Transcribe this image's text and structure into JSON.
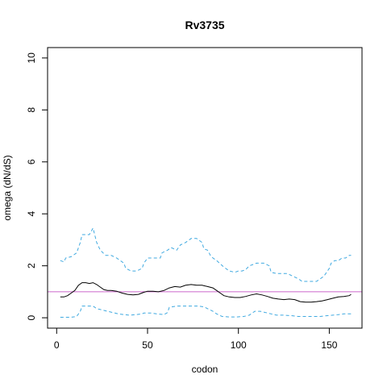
{
  "chart_data": {
    "type": "line",
    "title": "Rv3735",
    "xlabel": "codon",
    "ylabel": "omega (dN/dS)",
    "xlim": [
      -5,
      168
    ],
    "ylim": [
      -0.4,
      10.4
    ],
    "x_ticks": [
      0,
      50,
      100,
      150
    ],
    "y_ticks": [
      0,
      2,
      4,
      6,
      8,
      10
    ],
    "x_tick_labels": [
      "0",
      "50",
      "100",
      "150"
    ],
    "y_tick_labels": [
      "0",
      "2",
      "4",
      "6",
      "8",
      "10"
    ],
    "grid": false,
    "reference_line": {
      "y": 1,
      "color": "#cc66cc"
    },
    "series": [
      {
        "role": "upper",
        "style": "dashed",
        "color": "#3fa9e0",
        "x": [
          2,
          4,
          5,
          8,
          11,
          13,
          14,
          18,
          20,
          22,
          24,
          27,
          30,
          33,
          37,
          38,
          41,
          44,
          47,
          48,
          50,
          53,
          57,
          58,
          61,
          63,
          66,
          68,
          71,
          74,
          77,
          80,
          81,
          83,
          85,
          88,
          92,
          95,
          98,
          100,
          102,
          104,
          106,
          108,
          110,
          114,
          117,
          118,
          121,
          124,
          127,
          130,
          133,
          135,
          138,
          141,
          143,
          145,
          147,
          150,
          151,
          153,
          155,
          157,
          159,
          161,
          162
        ],
        "y": [
          2.2,
          2.15,
          2.3,
          2.35,
          2.5,
          2.9,
          3.2,
          3.2,
          3.45,
          2.9,
          2.6,
          2.4,
          2.4,
          2.3,
          2.1,
          1.9,
          1.8,
          1.8,
          1.9,
          2.1,
          2.3,
          2.3,
          2.3,
          2.5,
          2.6,
          2.7,
          2.6,
          2.8,
          2.9,
          3.05,
          3.05,
          2.9,
          2.65,
          2.6,
          2.35,
          2.2,
          1.95,
          1.8,
          1.75,
          1.8,
          1.8,
          1.85,
          2.0,
          2.05,
          2.1,
          2.1,
          2.0,
          1.75,
          1.7,
          1.7,
          1.7,
          1.6,
          1.5,
          1.4,
          1.4,
          1.4,
          1.4,
          1.5,
          1.6,
          1.9,
          2.1,
          2.2,
          2.2,
          2.3,
          2.3,
          2.4,
          2.4
        ]
      },
      {
        "role": "estimate",
        "style": "solid",
        "color": "#000000",
        "x": [
          2,
          4,
          6,
          8,
          10,
          12,
          14,
          16,
          18,
          20,
          22,
          24,
          26,
          28,
          30,
          33,
          36,
          39,
          42,
          45,
          48,
          50,
          53,
          56,
          59,
          62,
          65,
          68,
          71,
          74,
          77,
          80,
          83,
          86,
          88,
          90,
          92,
          95,
          98,
          101,
          104,
          107,
          110,
          113,
          116,
          119,
          122,
          125,
          128,
          131,
          134,
          137,
          140,
          143,
          146,
          149,
          152,
          155,
          158,
          161,
          162
        ],
        "y": [
          0.8,
          0.8,
          0.85,
          0.95,
          1.05,
          1.25,
          1.35,
          1.35,
          1.32,
          1.35,
          1.28,
          1.18,
          1.08,
          1.05,
          1.05,
          1.02,
          0.95,
          0.9,
          0.88,
          0.9,
          0.98,
          1.02,
          1.02,
          1.0,
          1.05,
          1.15,
          1.2,
          1.18,
          1.25,
          1.28,
          1.25,
          1.25,
          1.2,
          1.15,
          1.05,
          0.95,
          0.85,
          0.8,
          0.78,
          0.78,
          0.82,
          0.88,
          0.92,
          0.88,
          0.82,
          0.75,
          0.72,
          0.7,
          0.72,
          0.7,
          0.62,
          0.6,
          0.6,
          0.62,
          0.65,
          0.7,
          0.75,
          0.8,
          0.82,
          0.85,
          0.9
        ]
      },
      {
        "role": "lower",
        "style": "dashed",
        "color": "#3fa9e0",
        "x": [
          2,
          5,
          8,
          11,
          13,
          14,
          18,
          20,
          22,
          25,
          28,
          31,
          34,
          37,
          40,
          44,
          47,
          48,
          52,
          55,
          59,
          61,
          62,
          66,
          70,
          74,
          78,
          81,
          83,
          86,
          88,
          91,
          95,
          99,
          103,
          106,
          109,
          112,
          115,
          118,
          121,
          125,
          129,
          133,
          137,
          141,
          145,
          149,
          152,
          155,
          158,
          161,
          162
        ],
        "y": [
          0.02,
          0.02,
          0.02,
          0.05,
          0.25,
          0.45,
          0.45,
          0.45,
          0.35,
          0.3,
          0.25,
          0.2,
          0.15,
          0.12,
          0.1,
          0.12,
          0.15,
          0.18,
          0.18,
          0.15,
          0.12,
          0.2,
          0.4,
          0.45,
          0.45,
          0.45,
          0.45,
          0.42,
          0.35,
          0.25,
          0.15,
          0.05,
          0.03,
          0.03,
          0.05,
          0.1,
          0.25,
          0.25,
          0.2,
          0.15,
          0.1,
          0.1,
          0.08,
          0.05,
          0.05,
          0.05,
          0.05,
          0.08,
          0.1,
          0.12,
          0.15,
          0.15,
          0.15
        ]
      }
    ]
  }
}
